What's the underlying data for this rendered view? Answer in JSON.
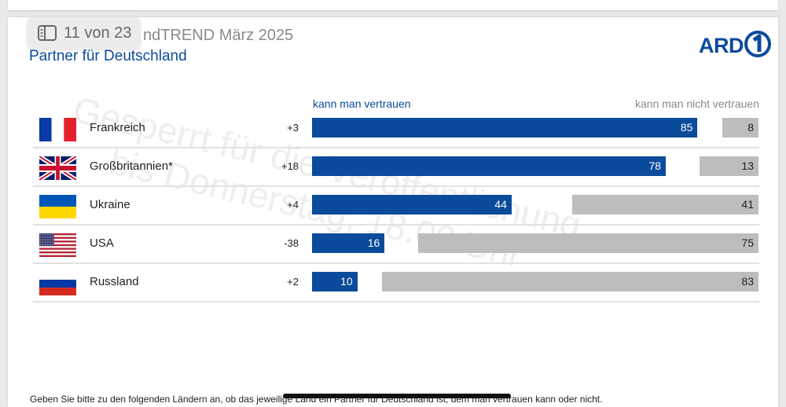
{
  "header": {
    "title_visible": "ndTREND März 2025",
    "subtitle": "Partner für Deutschland",
    "page_counter": "11 von 23",
    "page_counter_icon": "sidebar-icon",
    "logo_text": "ARD",
    "logo_icon": "ard-one-logo-icon"
  },
  "watermark": {
    "line1": "Gesperrt für die Veröffentlichung",
    "line2": "bis Donnerstag, 18.00 Uhr"
  },
  "footnote": "Geben Sie bitte zu den folgenden Ländern an, ob das jeweilige Land ein Partner für Deutschland ist, dem man vertrauen kann oder nicht.",
  "colors": {
    "trust": "#0b4b9b",
    "distrust": "#bdbdbd",
    "title_blue": "#0b4b9b"
  },
  "chart_data": {
    "type": "bar",
    "orientation": "horizontal",
    "categories": [
      "Frankreich",
      "Großbritannien*",
      "Ukraine",
      "USA",
      "Russland"
    ],
    "flags": [
      "france-flag-icon",
      "uk-flag-icon",
      "ukraine-flag-icon",
      "usa-flag-icon",
      "russia-flag-icon"
    ],
    "changes": [
      "+3",
      "+18",
      "+4",
      "-38",
      "+2"
    ],
    "series": [
      {
        "name": "kann man vertrauen",
        "values": [
          85,
          78,
          44,
          16,
          10
        ]
      },
      {
        "name": "kann man nicht vertrauen",
        "values": [
          8,
          13,
          41,
          75,
          83
        ]
      }
    ],
    "xlim": [
      0,
      100
    ],
    "grid": false
  }
}
